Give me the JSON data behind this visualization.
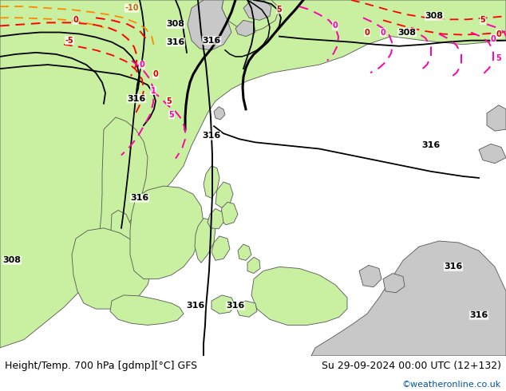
{
  "title_left": "Height/Temp. 700 hPa [gdmp][°C] GFS",
  "title_right": "Su 29-09-2024 00:00 UTC (12+132)",
  "credit": "©weatheronline.co.uk",
  "bg_color": "#ffffff",
  "ocean_color": "#d8d8d8",
  "land_green": "#c8f0a0",
  "land_gray": "#c8c8c8",
  "border_color": "#555555",
  "figsize": [
    6.34,
    4.9
  ],
  "dpi": 100,
  "bottom_text_color": "#000000",
  "credit_color": "#0055aa",
  "font_size_bottom": 9,
  "font_size_credit": 8
}
